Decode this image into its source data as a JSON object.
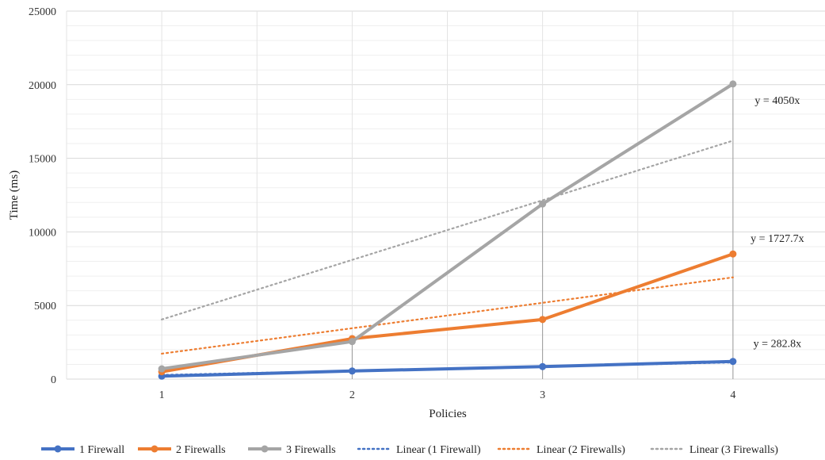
{
  "chart_data": {
    "type": "line",
    "xlabel": "Policies",
    "ylabel": "Time (ms)",
    "categories": [
      "1",
      "2",
      "3",
      "4"
    ],
    "x": [
      1,
      2,
      3,
      4
    ],
    "ylim": [
      0,
      25000
    ],
    "yticks": [
      0,
      5000,
      10000,
      15000,
      20000,
      25000
    ],
    "grid": true,
    "legend_position": "bottom",
    "series": [
      {
        "name": "1 Firewall",
        "values": [
          200,
          550,
          850,
          1200
        ],
        "color": "#4472c4",
        "style": "solid"
      },
      {
        "name": "2 Firewalls",
        "values": [
          500,
          2750,
          4050,
          8500
        ],
        "color": "#ed7d31",
        "style": "solid"
      },
      {
        "name": "3 Firewalls",
        "values": [
          700,
          2550,
          11900,
          20050
        ],
        "color": "#a5a5a5",
        "style": "solid"
      }
    ],
    "trendlines": [
      {
        "name": "Linear (1 Firewall)",
        "slope": 282.8,
        "color": "#4472c4",
        "style": "dotted",
        "equation": "y = 282.8x"
      },
      {
        "name": "Linear (2 Firewalls)",
        "slope": 1727.7,
        "color": "#ed7d31",
        "style": "dotted",
        "equation": "y = 1727.7x"
      },
      {
        "name": "Linear (3 Firewalls)",
        "slope": 4050,
        "color": "#a5a5a5",
        "style": "dotted",
        "equation": "y = 4050x"
      }
    ]
  }
}
